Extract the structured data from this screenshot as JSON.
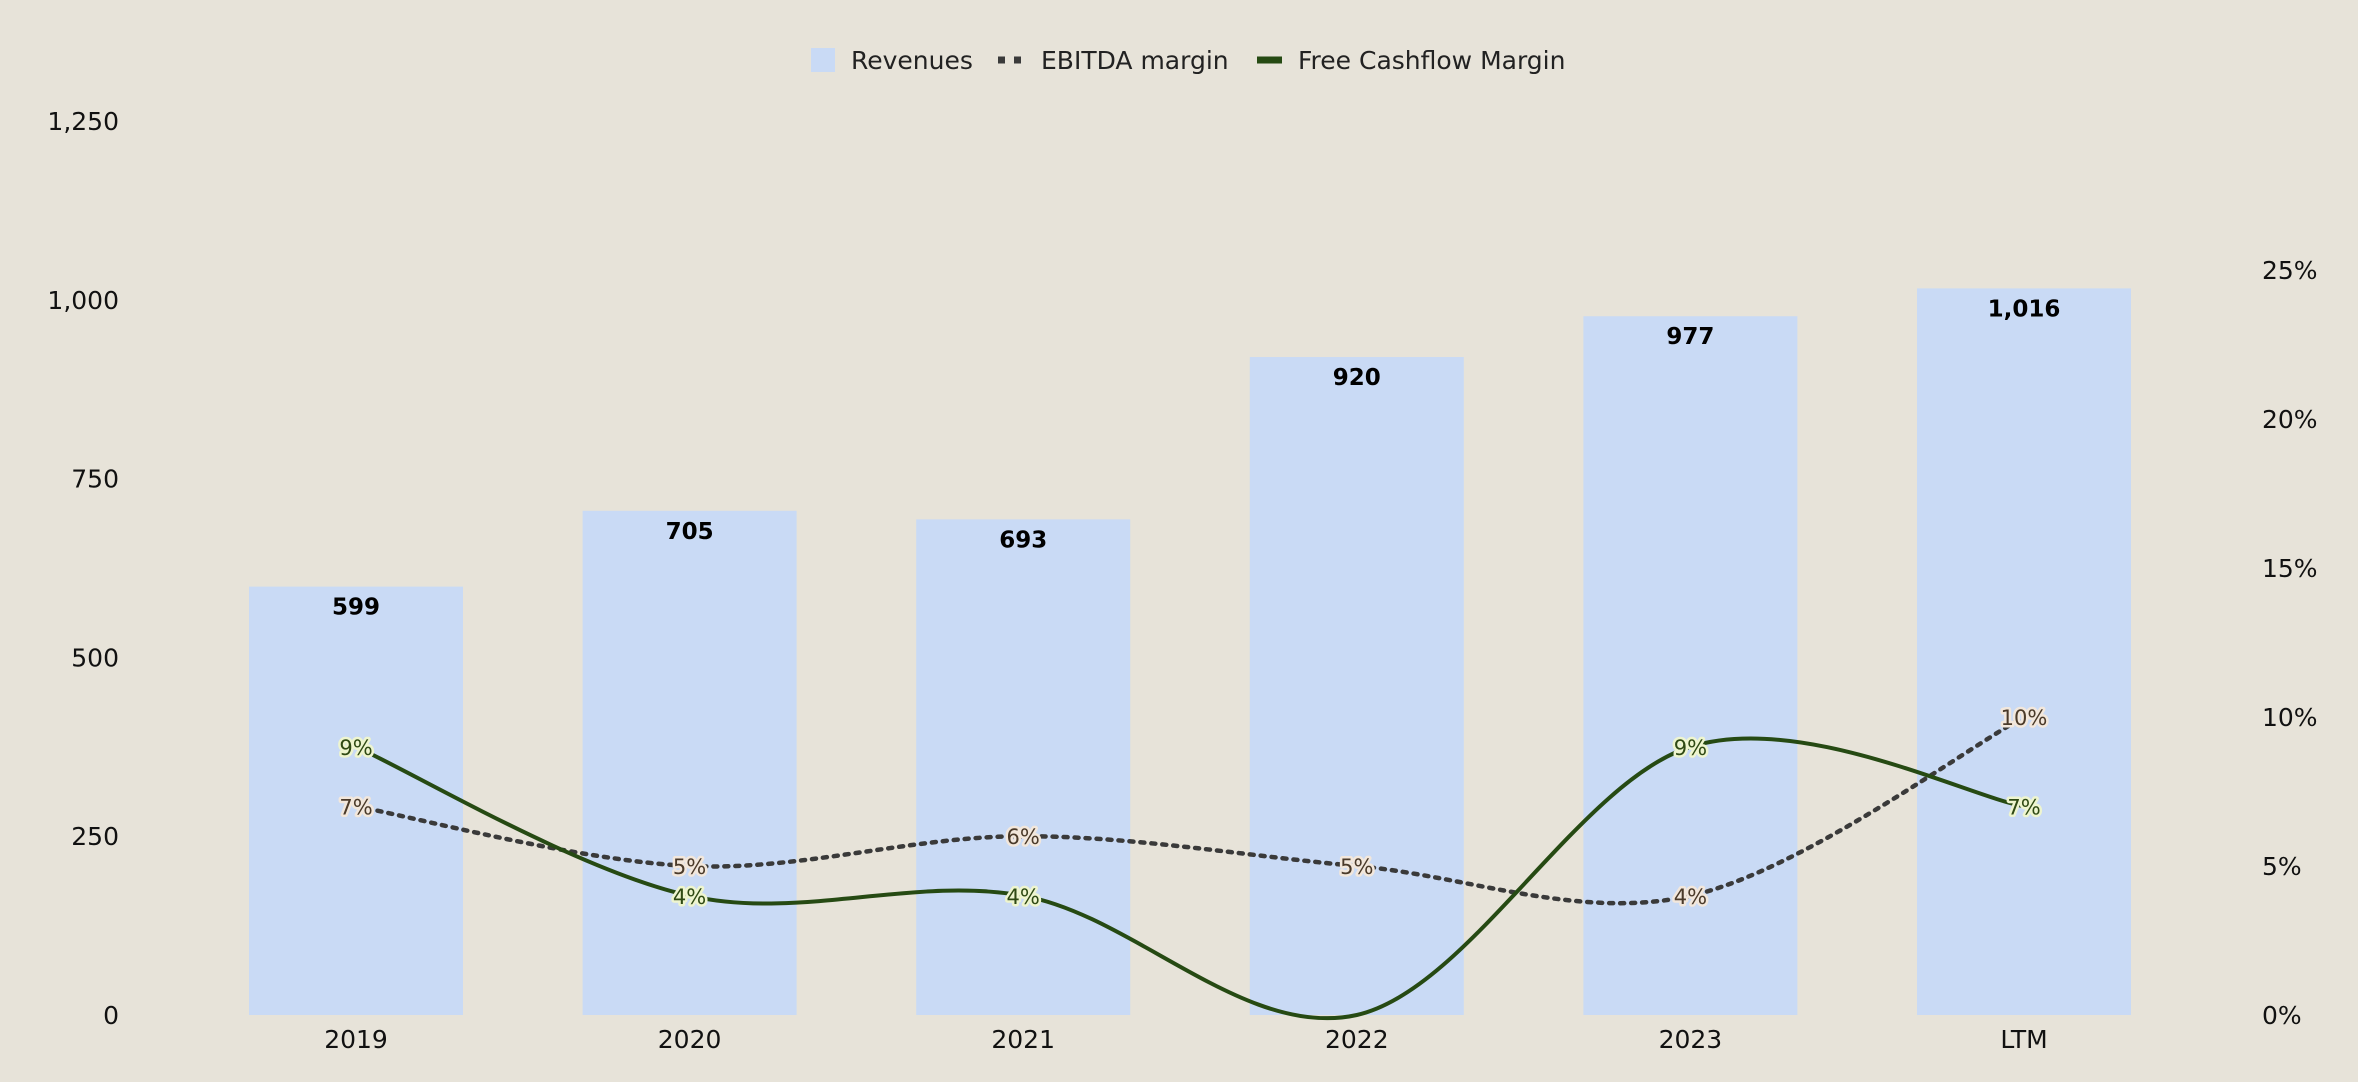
{
  "chart_data": {
    "type": "bar",
    "categories": [
      "2019",
      "2020",
      "2021",
      "2022",
      "2023",
      "LTM"
    ],
    "series": [
      {
        "name": "Revenues",
        "kind": "bar",
        "axis": "left",
        "values": [
          599,
          705,
          693,
          920,
          977,
          1016
        ],
        "labels": [
          "599",
          "705",
          "693",
          "920",
          "977",
          "1,016"
        ]
      },
      {
        "name": "EBITDA margin",
        "kind": "line",
        "style": "dotted",
        "axis": "right",
        "values": [
          7,
          5,
          6,
          5,
          4,
          10
        ],
        "labels": [
          "7%",
          "5%",
          "6%",
          "5%",
          "4%",
          "10%"
        ]
      },
      {
        "name": "Free Cashflow Margin",
        "kind": "line",
        "style": "solid",
        "axis": "right",
        "values": [
          9,
          4,
          4,
          0,
          9,
          7
        ],
        "labels": [
          "9%",
          "4%",
          "4%",
          "",
          "9%",
          "7%"
        ]
      }
    ],
    "y_left": {
      "min": 0,
      "max": 1250,
      "ticks": [
        0,
        250,
        500,
        750,
        1000,
        1250
      ],
      "tick_labels": [
        "0",
        "250",
        "500",
        "750",
        "1,000",
        "1,250"
      ]
    },
    "y_right": {
      "min": 0,
      "max": 30,
      "ticks": [
        0,
        5,
        10,
        15,
        20,
        25
      ],
      "tick_labels": [
        "0%",
        "5%",
        "10%",
        "15%",
        "20%",
        "25%"
      ]
    },
    "grid": false,
    "legend": "top-center",
    "colors": {
      "background": "#e7e3d9",
      "bar": "#c9daf5",
      "ebitda_line": "#3a3a3a",
      "fcf_line": "#264a13",
      "ebitda_label_text": "#4a3a2a",
      "ebitda_label_halo": "#f2e7dc",
      "fcf_label_text": "#2f4a14",
      "fcf_label_halo": "#eef5cf"
    }
  }
}
